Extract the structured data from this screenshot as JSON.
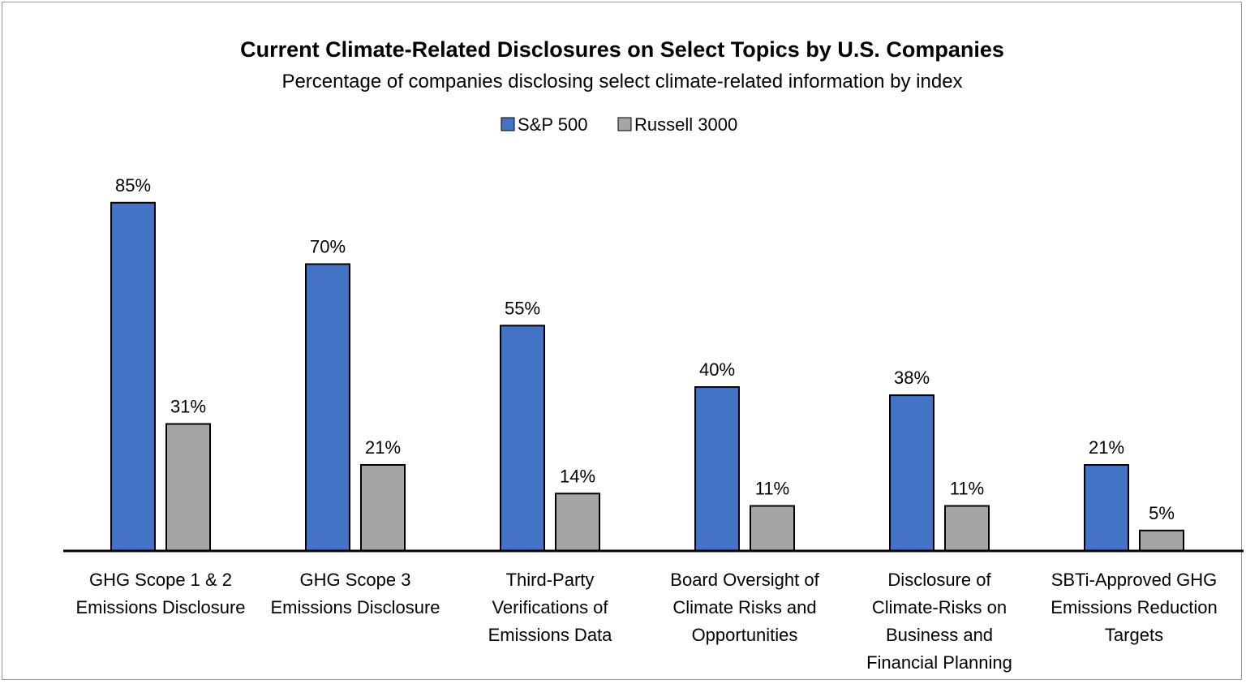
{
  "chart_data": {
    "type": "bar",
    "title": "Current Climate-Related Disclosures on Select Topics by U.S. Companies",
    "subtitle": "Percentage of companies disclosing select climate-related information by index",
    "xlabel": "",
    "ylabel": "",
    "ylim": [
      0,
      100
    ],
    "grid": false,
    "legend_position": "top-center",
    "value_format": "percent",
    "categories": [
      [
        "GHG Scope 1 & 2",
        "Emissions Disclosure"
      ],
      [
        "GHG Scope 3",
        "Emissions Disclosure"
      ],
      [
        "Third-Party",
        "Verifications of",
        "Emissions Data"
      ],
      [
        "Board Oversight of",
        "Climate Risks and",
        "Opportunities"
      ],
      [
        "Disclosure of",
        "Climate-Risks on",
        "Business and",
        "Financial Planning"
      ],
      [
        "SBTi-Approved GHG",
        "Emissions Reduction",
        "Targets"
      ]
    ],
    "series": [
      {
        "name": "S&P 500",
        "color": "#4472C4",
        "values": [
          85,
          70,
          55,
          40,
          38,
          21
        ],
        "labels": [
          "85%",
          "70%",
          "55%",
          "40%",
          "38%",
          "21%"
        ]
      },
      {
        "name": "Russell 3000",
        "color": "#A5A5A5",
        "values": [
          31,
          21,
          14,
          11,
          11,
          5
        ],
        "labels": [
          "31%",
          "21%",
          "14%",
          "11%",
          "11%",
          "5%"
        ]
      }
    ]
  }
}
